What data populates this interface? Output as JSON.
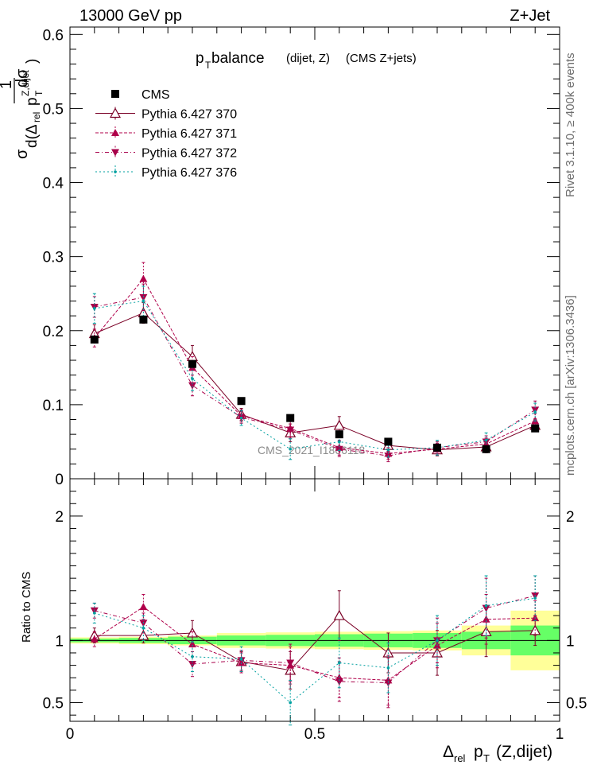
{
  "header": {
    "left": "13000 GeV pp",
    "right": "Z+Jet"
  },
  "sidebar": {
    "rivet": "Rivet 3.1.10, ≥ 400k events",
    "mcplots": "mcplots.cern.ch [arXiv:1306.3436]"
  },
  "chart_data": {
    "type": "line",
    "title_main": "p",
    "title_sub": "T",
    "title_rest": " balance",
    "title_small": "(dijet, Z)",
    "title_tail": "(CMS Z+jets)",
    "watermark": "CMS_2021_I1866118",
    "ylabel_main": "1/σ dσ/d(Δrel pT Z,dijet)",
    "ylabel_ratio": "Ratio to CMS",
    "xlabel": "Δrel pT (Z,dijet)",
    "xlim": [
      0,
      1
    ],
    "ylim_main": [
      0,
      0.61
    ],
    "ylim_ratio": [
      0.35,
      2.3
    ],
    "x_ticks": [
      "0",
      "0.5",
      "1"
    ],
    "y_ticks_main": [
      "0",
      "0.1",
      "0.2",
      "0.3",
      "0.4",
      "0.5",
      "0.6"
    ],
    "y_ticks_ratio": [
      "0.5",
      "1",
      "2"
    ],
    "x": [
      0.05,
      0.15,
      0.25,
      0.35,
      0.45,
      0.55,
      0.65,
      0.75,
      0.85,
      0.95
    ],
    "band_rel": {
      "stat": [
        0.015,
        0.02,
        0.03,
        0.04,
        0.045,
        0.05,
        0.055,
        0.06,
        0.07,
        0.12
      ],
      "total": [
        0.025,
        0.03,
        0.04,
        0.06,
        0.065,
        0.07,
        0.075,
        0.08,
        0.12,
        0.24
      ]
    },
    "series": [
      {
        "name": "CMS",
        "color": "#000000",
        "marker": "square",
        "values": [
          0.188,
          0.215,
          0.155,
          0.105,
          0.082,
          0.06,
          0.05,
          0.042,
          0.04,
          0.068
        ],
        "errors": [
          0.004,
          0.005,
          0.004,
          0.003,
          0.003,
          0.002,
          0.002,
          0.002,
          0.002,
          0.004
        ]
      },
      {
        "name": "Pythia 6.427 370",
        "color": "#7a0026",
        "marker": "open-triangle",
        "dash": "",
        "values": [
          0.196,
          0.224,
          0.165,
          0.087,
          0.062,
          0.072,
          0.045,
          0.039,
          0.043,
          0.072
        ],
        "errors": [
          0.012,
          0.014,
          0.015,
          0.008,
          0.012,
          0.012,
          0.008,
          0.008,
          0.008,
          0.008
        ],
        "ratio": [
          1.04,
          1.04,
          1.06,
          0.83,
          0.76,
          1.2,
          0.9,
          0.9,
          1.07,
          1.08
        ],
        "ratio_err": [
          0.06,
          0.06,
          0.1,
          0.08,
          0.15,
          0.2,
          0.16,
          0.18,
          0.2,
          0.12
        ]
      },
      {
        "name": "Pythia 6.427 371",
        "color": "#b0004a",
        "marker": "triangle",
        "dash": "4,2",
        "values": [
          0.19,
          0.27,
          0.15,
          0.085,
          0.068,
          0.042,
          0.034,
          0.04,
          0.047,
          0.078
        ],
        "errors": [
          0.012,
          0.022,
          0.015,
          0.008,
          0.012,
          0.01,
          0.008,
          0.008,
          0.008,
          0.01
        ],
        "ratio": [
          1.01,
          1.27,
          0.97,
          0.82,
          0.8,
          0.7,
          0.68,
          0.96,
          1.17,
          1.18
        ],
        "ratio_err": [
          0.06,
          0.1,
          0.1,
          0.08,
          0.15,
          0.16,
          0.2,
          0.18,
          0.2,
          0.14
        ]
      },
      {
        "name": "Pythia 6.427 372",
        "color": "#a8004a",
        "marker": "inv-triangle",
        "dash": "5,3,1,3",
        "values": [
          0.232,
          0.245,
          0.126,
          0.083,
          0.066,
          0.04,
          0.031,
          0.042,
          0.05,
          0.093
        ],
        "errors": [
          0.014,
          0.018,
          0.014,
          0.008,
          0.012,
          0.01,
          0.008,
          0.008,
          0.008,
          0.012
        ],
        "ratio": [
          1.24,
          1.14,
          0.81,
          0.84,
          0.82,
          0.67,
          0.66,
          1.0,
          1.26,
          1.36
        ],
        "ratio_err": [
          0.06,
          0.08,
          0.1,
          0.08,
          0.15,
          0.16,
          0.2,
          0.18,
          0.24,
          0.16
        ]
      },
      {
        "name": "Pythia 6.427 376",
        "color": "#00a0a0",
        "marker": "dot",
        "dash": "2,3",
        "values": [
          0.23,
          0.24,
          0.135,
          0.082,
          0.04,
          0.05,
          0.039,
          0.042,
          0.052,
          0.09
        ],
        "errors": [
          0.02,
          0.02,
          0.016,
          0.01,
          0.014,
          0.012,
          0.01,
          0.01,
          0.01,
          0.012
        ],
        "ratio": [
          1.22,
          1.1,
          0.87,
          0.85,
          0.5,
          0.82,
          0.78,
          1.0,
          1.28,
          1.34
        ],
        "ratio_err": [
          0.08,
          0.1,
          0.12,
          0.1,
          0.18,
          0.2,
          0.2,
          0.2,
          0.24,
          0.18
        ]
      }
    ]
  }
}
